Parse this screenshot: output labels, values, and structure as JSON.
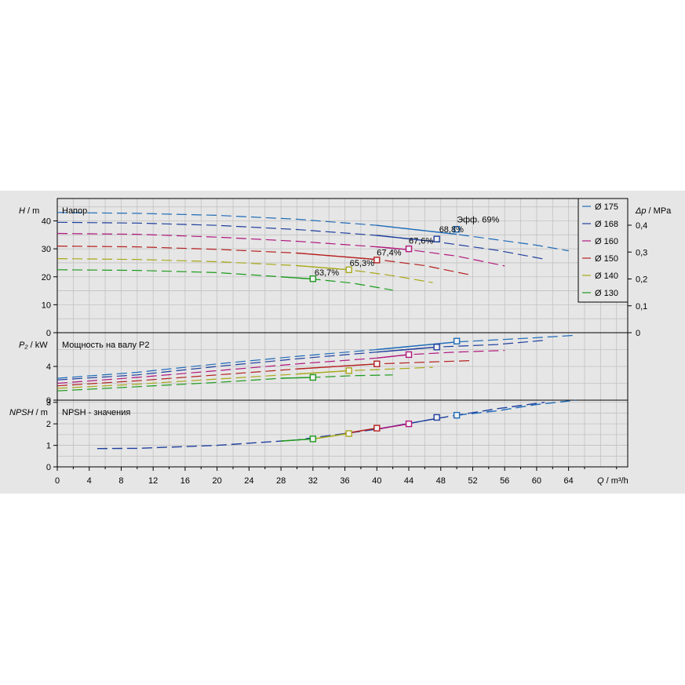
{
  "chart_data": {
    "type": "line",
    "x_axis": {
      "label": "Q",
      "unit": "m³/h",
      "range": [
        0,
        70
      ],
      "ticks": [
        "0",
        "4",
        "8",
        "12",
        "16",
        "20",
        "24",
        "28",
        "32",
        "36",
        "40",
        "44",
        "48",
        "52",
        "56",
        "60",
        "64"
      ]
    },
    "panels": [
      {
        "id": "head",
        "ylabel": "H",
        "yunit": "m",
        "title": "Напор",
        "ylim": [
          0,
          48
        ],
        "yticks": [
          "0",
          "10",
          "20",
          "30",
          "40"
        ],
        "right_axis": {
          "label": "Δp",
          "unit": "MPa",
          "ticks": [
            "0",
            "0,1",
            "0,2",
            "0,3",
            "0,4"
          ]
        }
      },
      {
        "id": "power",
        "ylabel": "P₂",
        "yunit": "kW",
        "title": "Мощность на валу P2",
        "ylim": [
          0,
          8
        ],
        "yticks": [
          "0",
          "4"
        ]
      },
      {
        "id": "npsh",
        "ylabel": "NPSH",
        "yunit": "m",
        "title": "NPSH - значения",
        "ylim": [
          0,
          3.1
        ],
        "yticks": [
          "0",
          "1",
          "2",
          "3"
        ]
      }
    ],
    "legend": {
      "position": "top-right",
      "entries": [
        "Ø 175",
        "Ø 168",
        "Ø 160",
        "Ø 150",
        "Ø 140",
        "Ø 130"
      ]
    },
    "series": [
      {
        "name": "Ø 175",
        "color": "#1e6bb8",
        "head": [
          [
            0,
            43.0
          ],
          [
            10,
            42.7
          ],
          [
            20,
            42.0
          ],
          [
            30,
            40.6
          ],
          [
            40,
            38.4
          ],
          [
            50,
            35.2
          ],
          [
            60,
            31.3
          ],
          [
            64,
            29.3
          ]
        ],
        "power": [
          [
            0,
            2.6
          ],
          [
            10,
            3.3
          ],
          [
            20,
            4.3
          ],
          [
            30,
            5.2
          ],
          [
            40,
            6.0
          ],
          [
            50,
            6.9
          ],
          [
            60,
            7.4
          ],
          [
            65,
            7.7
          ]
        ],
        "npsh": [
          [
            50,
            2.4
          ],
          [
            55,
            2.6
          ],
          [
            60,
            2.9
          ],
          [
            65,
            3.1
          ]
        ],
        "bep": [
          50,
          37.0
        ],
        "bep_power": 7.0,
        "bep_npsh": 2.4
      },
      {
        "name": "Ø 168",
        "color": "#1f3f9e",
        "head": [
          [
            0,
            39.5
          ],
          [
            10,
            39.2
          ],
          [
            20,
            38.4
          ],
          [
            30,
            36.9
          ],
          [
            40,
            34.8
          ],
          [
            47.5,
            32.5
          ],
          [
            55,
            29.5
          ],
          [
            61,
            26.3
          ]
        ],
        "power": [
          [
            0,
            2.4
          ],
          [
            10,
            3.0
          ],
          [
            20,
            4.0
          ],
          [
            30,
            4.9
          ],
          [
            40,
            5.7
          ],
          [
            47.5,
            6.3
          ],
          [
            55,
            6.6
          ],
          [
            61,
            7.1
          ]
        ],
        "npsh": [
          [
            5,
            0.85
          ],
          [
            10,
            0.86
          ],
          [
            20,
            1.0
          ],
          [
            30,
            1.25
          ],
          [
            40,
            1.75
          ],
          [
            47.5,
            2.25
          ],
          [
            55,
            2.7
          ],
          [
            61,
            3.0
          ]
        ],
        "bep": [
          47.5,
          33.5
        ],
        "bep_power": 6.3,
        "bep_npsh": 2.3
      },
      {
        "name": "Ø 160",
        "color": "#b0177d",
        "head": [
          [
            0,
            35.5
          ],
          [
            10,
            35.2
          ],
          [
            20,
            34.2
          ],
          [
            30,
            32.7
          ],
          [
            40,
            30.7
          ],
          [
            44,
            29.7
          ],
          [
            50,
            27.4
          ],
          [
            56,
            23.9
          ]
        ],
        "power": [
          [
            0,
            2.0
          ],
          [
            10,
            2.7
          ],
          [
            20,
            3.5
          ],
          [
            30,
            4.3
          ],
          [
            40,
            5.0
          ],
          [
            44,
            5.4
          ],
          [
            50,
            5.7
          ],
          [
            56,
            5.9
          ]
        ],
        "npsh": [
          [
            40,
            1.75
          ],
          [
            44,
            2.0
          ]
        ],
        "bep": [
          44,
          30.0
        ],
        "bep_power": 5.4,
        "bep_npsh": 2.0
      },
      {
        "name": "Ø 150",
        "color": "#b52020",
        "head": [
          [
            0,
            31.0
          ],
          [
            10,
            30.7
          ],
          [
            20,
            29.8
          ],
          [
            30,
            28.5
          ],
          [
            40,
            26.2
          ],
          [
            46,
            24.0
          ],
          [
            52,
            20.5
          ]
        ],
        "power": [
          [
            0,
            1.7
          ],
          [
            10,
            2.3
          ],
          [
            20,
            3.0
          ],
          [
            30,
            3.7
          ],
          [
            40,
            4.3
          ],
          [
            46,
            4.5
          ],
          [
            52,
            4.7
          ]
        ],
        "npsh": [
          [
            36,
            1.55
          ],
          [
            40,
            1.8
          ]
        ],
        "bep": [
          40,
          26.0
        ],
        "bep_power": 4.3,
        "bep_npsh": 1.8
      },
      {
        "name": "Ø 140",
        "color": "#a8a81a",
        "head": [
          [
            0,
            26.5
          ],
          [
            10,
            26.2
          ],
          [
            20,
            25.4
          ],
          [
            30,
            24.0
          ],
          [
            36.5,
            22.5
          ],
          [
            42,
            20.4
          ],
          [
            47,
            17.9
          ]
        ],
        "power": [
          [
            0,
            1.4
          ],
          [
            10,
            1.9
          ],
          [
            20,
            2.5
          ],
          [
            30,
            3.1
          ],
          [
            36.5,
            3.5
          ],
          [
            42,
            3.7
          ],
          [
            47,
            3.9
          ]
        ],
        "npsh": [
          [
            32,
            1.3
          ],
          [
            36.5,
            1.55
          ]
        ],
        "bep": [
          36.5,
          22.5
        ],
        "bep_power": 3.5,
        "bep_npsh": 1.55
      },
      {
        "name": "Ø 130",
        "color": "#1e9a1e",
        "head": [
          [
            0,
            22.5
          ],
          [
            10,
            22.3
          ],
          [
            20,
            21.5
          ],
          [
            28,
            20.0
          ],
          [
            32,
            19.2
          ],
          [
            37,
            17.7
          ],
          [
            42,
            15.2
          ]
        ],
        "power": [
          [
            0,
            1.1
          ],
          [
            10,
            1.6
          ],
          [
            20,
            2.1
          ],
          [
            28,
            2.6
          ],
          [
            32,
            2.7
          ],
          [
            37,
            2.9
          ],
          [
            42,
            3.0
          ]
        ],
        "npsh": [
          [
            28,
            1.2
          ],
          [
            32,
            1.3
          ]
        ],
        "bep": [
          32,
          19.3
        ],
        "bep_power": 2.7,
        "bep_npsh": 1.3
      }
    ],
    "annotations": [
      {
        "text": "Эфф.  69%",
        "color": "#1e6bb8",
        "x": 50,
        "y": 39.5
      },
      {
        "text": "68,8%",
        "color": "#1f3f9e",
        "x": 47.8,
        "y": 36.0
      },
      {
        "text": "67,6%",
        "color": "#b0177d",
        "x": 44,
        "y": 31.8
      },
      {
        "text": "67,4%",
        "color": "#b52020",
        "x": 40,
        "y": 27.6
      },
      {
        "text": "65,3%",
        "color": "#a8a81a",
        "x": 36.6,
        "y": 23.8
      },
      {
        "text": "63,7%",
        "color": "#1e9a1e",
        "x": 32.2,
        "y": 20.5
      }
    ],
    "grid": true
  }
}
